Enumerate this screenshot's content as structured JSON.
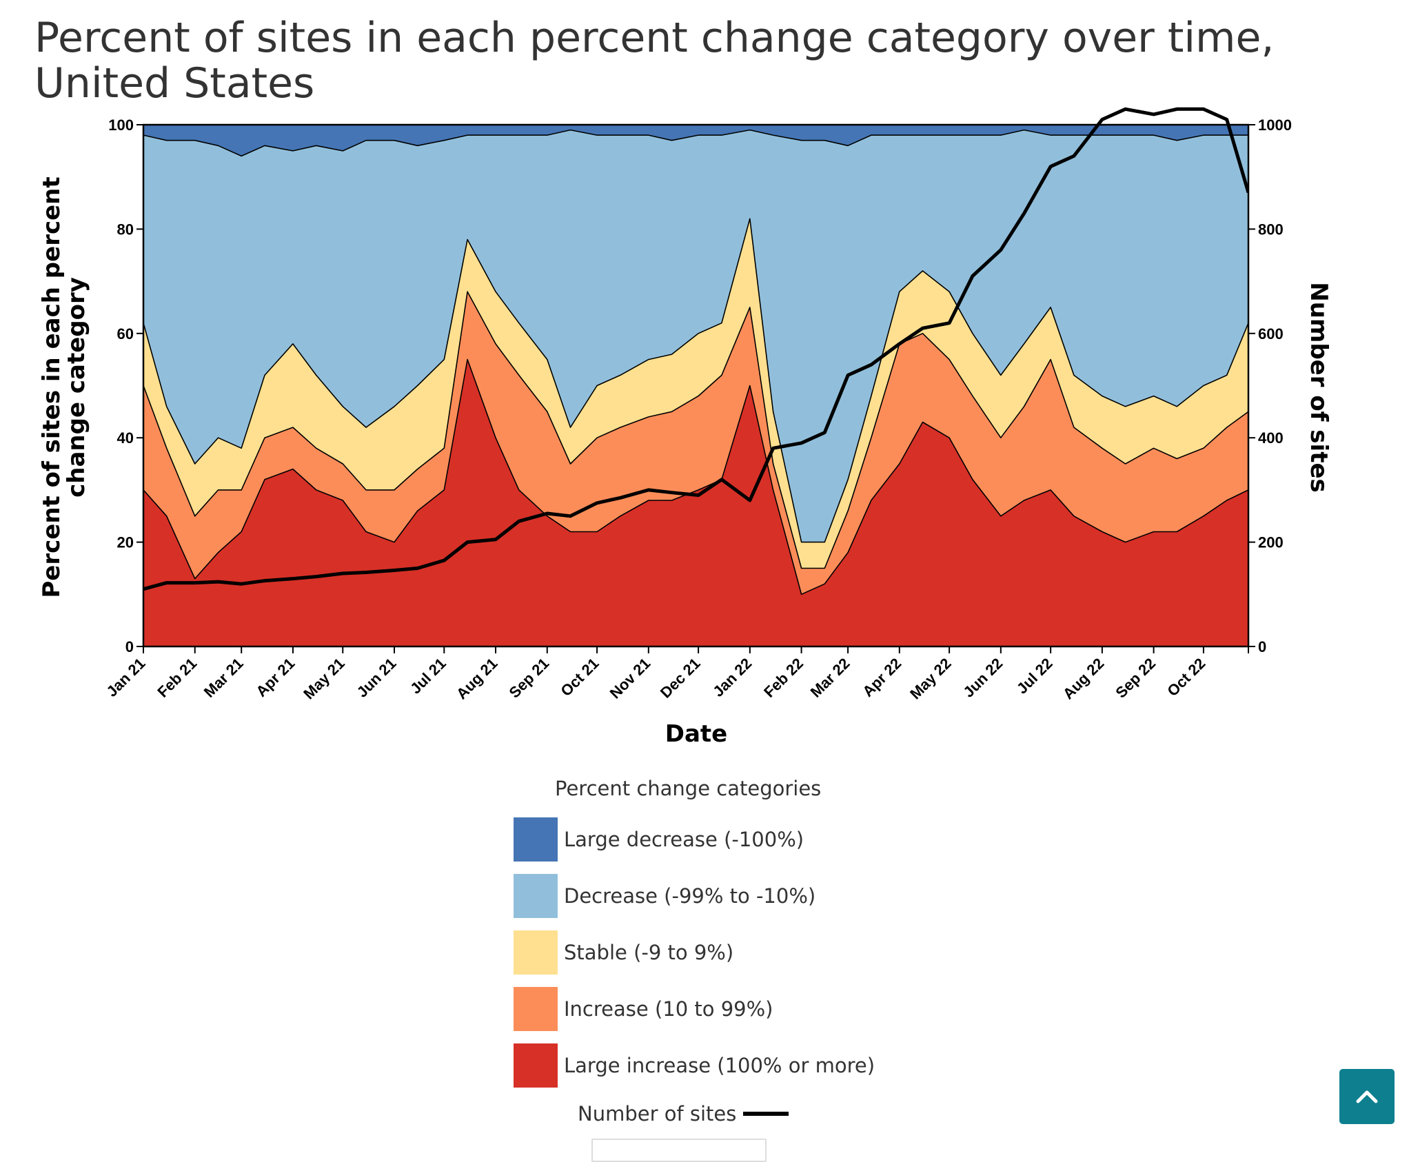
{
  "chart_data": {
    "type": "area",
    "title": "Percent of sites in each percent change category over time, United States",
    "xlabel": "Date",
    "ylabel": "Percent of sites in each percent change category",
    "y2label": "Number of sites",
    "ylim": [
      0,
      100
    ],
    "y2lim": [
      0,
      1000
    ],
    "yticks": [
      0,
      20,
      40,
      60,
      80,
      100
    ],
    "y2ticks": [
      0,
      200,
      400,
      600,
      800,
      1000
    ],
    "xtick_labels": [
      "Jan 21",
      "Feb 21",
      "Mar 21",
      "Apr 21",
      "May 21",
      "Jun 21",
      "Jul 21",
      "Aug 21",
      "Sep 21",
      "Oct 21",
      "Nov 21",
      "Dec 21",
      "Jan 22",
      "Feb 22",
      "Mar 22",
      "Apr 22",
      "May 22",
      "Jun 22",
      "Jul 22",
      "Aug 22",
      "Sep 22",
      "Oct 22"
    ],
    "stacking": "cumulative percent, bottom to top",
    "x": [
      "2021-01-01",
      "2021-01-15",
      "2021-02-01",
      "2021-02-15",
      "2021-03-01",
      "2021-03-15",
      "2021-04-01",
      "2021-04-15",
      "2021-05-01",
      "2021-05-15",
      "2021-06-01",
      "2021-06-15",
      "2021-07-01",
      "2021-07-15",
      "2021-08-01",
      "2021-08-15",
      "2021-09-01",
      "2021-09-15",
      "2021-10-01",
      "2021-10-15",
      "2021-11-01",
      "2021-11-15",
      "2021-12-01",
      "2021-12-15",
      "2022-01-01",
      "2022-01-15",
      "2022-02-01",
      "2022-02-15",
      "2022-03-01",
      "2022-03-15",
      "2022-04-01",
      "2022-04-15",
      "2022-05-01",
      "2022-05-15",
      "2022-06-01",
      "2022-06-15",
      "2022-07-01",
      "2022-07-15",
      "2022-08-01",
      "2022-08-15",
      "2022-09-01",
      "2022-09-15",
      "2022-10-01",
      "2022-10-15",
      "2022-10-28"
    ],
    "series": [
      {
        "name": "Large increase (100% or more)",
        "color": "#d73027",
        "values": [
          30,
          25,
          13,
          18,
          22,
          32,
          34,
          30,
          28,
          22,
          20,
          26,
          30,
          55,
          40,
          30,
          25,
          22,
          22,
          25,
          28,
          28,
          30,
          32,
          50,
          30,
          10,
          12,
          18,
          28,
          35,
          43,
          40,
          32,
          25,
          28,
          30,
          25,
          22,
          20,
          22,
          22,
          25,
          28,
          30
        ]
      },
      {
        "name": "Increase (10 to 99%)",
        "color": "#fc8d59",
        "values": [
          50,
          38,
          25,
          30,
          30,
          40,
          42,
          38,
          35,
          30,
          30,
          34,
          38,
          68,
          58,
          52,
          45,
          35,
          40,
          42,
          44,
          45,
          48,
          52,
          65,
          35,
          15,
          15,
          26,
          40,
          58,
          60,
          55,
          48,
          40,
          46,
          55,
          42,
          38,
          35,
          38,
          36,
          38,
          42,
          45
        ]
      },
      {
        "name": "Stable (-9 to 9%)",
        "color": "#fee090",
        "values": [
          62,
          46,
          35,
          40,
          38,
          52,
          58,
          52,
          46,
          42,
          46,
          50,
          55,
          78,
          68,
          62,
          55,
          42,
          50,
          52,
          55,
          56,
          60,
          62,
          82,
          45,
          20,
          20,
          32,
          48,
          68,
          72,
          68,
          60,
          52,
          58,
          65,
          52,
          48,
          46,
          48,
          46,
          50,
          52,
          62
        ]
      },
      {
        "name": "Decrease (-99% to -10%)",
        "color": "#91bfdb",
        "values": [
          98,
          97,
          97,
          96,
          94,
          96,
          95,
          96,
          95,
          97,
          97,
          96,
          97,
          98,
          98,
          98,
          98,
          99,
          98,
          98,
          98,
          97,
          98,
          98,
          99,
          98,
          97,
          97,
          96,
          98,
          98,
          98,
          98,
          98,
          98,
          99,
          98,
          98,
          98,
          98,
          98,
          97,
          98,
          98,
          98
        ]
      },
      {
        "name": "Large decrease (-100%)",
        "color": "#4575b4",
        "values": [
          100,
          100,
          100,
          100,
          100,
          100,
          100,
          100,
          100,
          100,
          100,
          100,
          100,
          100,
          100,
          100,
          100,
          100,
          100,
          100,
          100,
          100,
          100,
          100,
          100,
          100,
          100,
          100,
          100,
          100,
          100,
          100,
          100,
          100,
          100,
          100,
          100,
          100,
          100,
          100,
          100,
          100,
          100,
          100,
          100
        ]
      }
    ],
    "secondary_series": {
      "name": "Number of sites",
      "color": "#000000",
      "values": [
        110,
        122,
        122,
        124,
        120,
        126,
        130,
        134,
        140,
        142,
        146,
        150,
        165,
        200,
        205,
        240,
        255,
        250,
        275,
        285,
        300,
        295,
        290,
        320,
        280,
        380,
        390,
        410,
        520,
        540,
        580,
        610,
        620,
        710,
        760,
        830,
        920,
        940,
        1010,
        1030,
        1020,
        1030,
        1030,
        1010,
        870
      ]
    }
  },
  "legend": {
    "title": "Percent change categories",
    "items": [
      {
        "label": "Large decrease (-100%)",
        "color": "#4575b4"
      },
      {
        "label": "Decrease (-99% to -10%)",
        "color": "#91bfdb"
      },
      {
        "label": "Stable (-9 to 9%)",
        "color": "#fee090"
      },
      {
        "label": "Increase (10 to 99%)",
        "color": "#fc8d59"
      },
      {
        "label": "Large increase (100% or more)",
        "color": "#d73027"
      }
    ],
    "line_label": "Number of sites"
  },
  "back_to_top": {
    "icon": "chevron-up-icon",
    "color": "#0d7f8f"
  }
}
